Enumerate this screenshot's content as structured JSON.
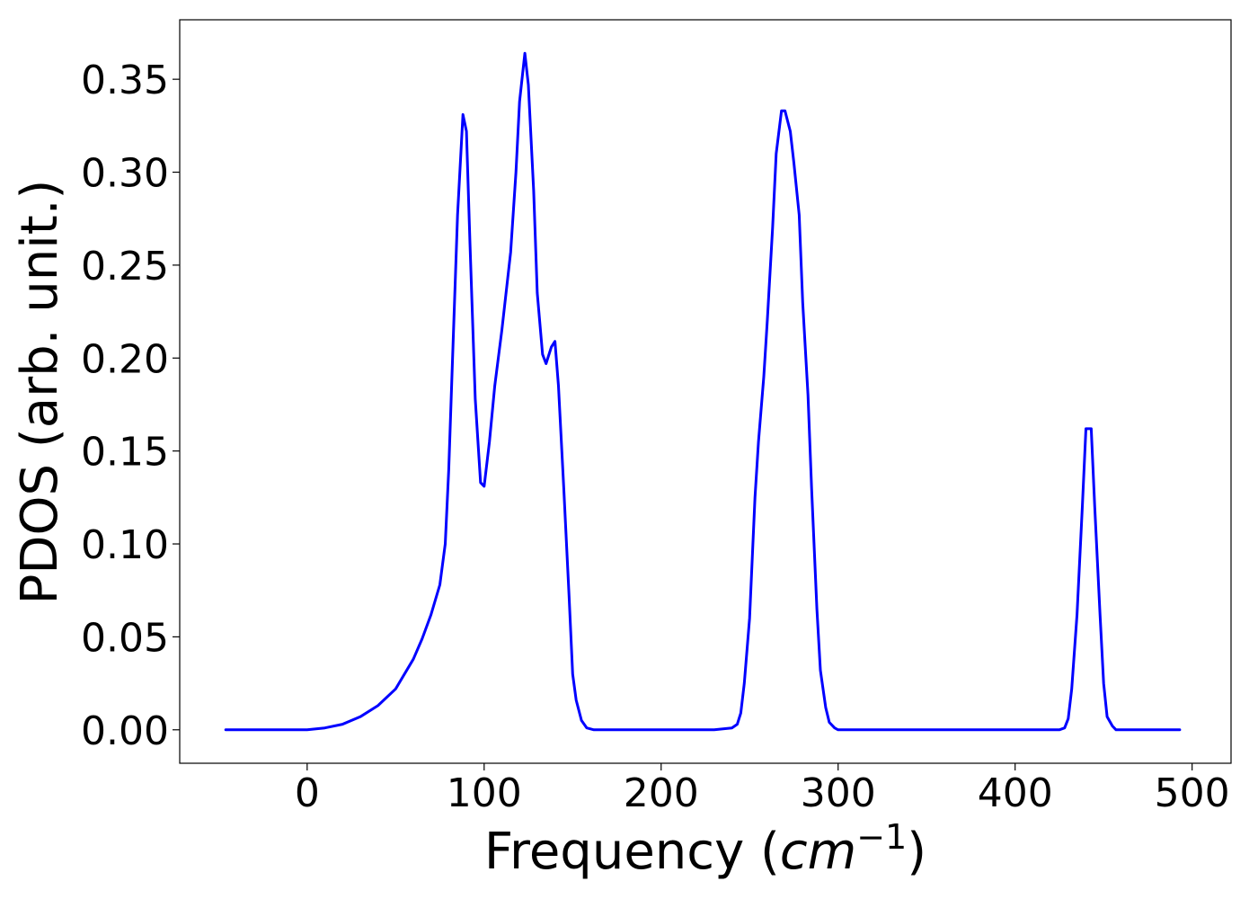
{
  "chart_data": {
    "type": "line",
    "title": "",
    "xlabel": "Frequency",
    "xlabel_unit": "cm",
    "xlabel_exp": "−1",
    "ylabel": "PDOS (arb. unit.)",
    "xlim": [
      -72,
      522
    ],
    "ylim": [
      -0.018,
      0.382
    ],
    "xticks": [
      0,
      100,
      200,
      300,
      400,
      500
    ],
    "yticks": [
      0.0,
      0.05,
      0.1,
      0.15,
      0.2,
      0.25,
      0.3,
      0.35
    ],
    "xtick_labels": [
      "0",
      "100",
      "200",
      "300",
      "400",
      "500"
    ],
    "ytick_labels": [
      "0.00",
      "0.05",
      "0.10",
      "0.15",
      "0.20",
      "0.25",
      "0.30",
      "0.35"
    ],
    "grid": false,
    "series": [
      {
        "color": "#0000ff",
        "x": [
          -46,
          -20,
          0,
          10,
          20,
          30,
          40,
          50,
          60,
          65,
          70,
          75,
          78,
          80,
          82,
          85,
          88,
          90,
          92,
          95,
          98,
          100,
          103,
          106,
          110,
          115,
          118,
          120,
          123,
          125,
          128,
          130,
          133,
          135,
          138,
          140,
          142,
          145,
          148,
          150,
          152,
          155,
          158,
          162,
          170,
          200,
          230,
          240,
          243,
          245,
          247,
          250,
          253,
          255,
          258,
          260,
          263,
          265,
          268,
          270,
          273,
          275,
          278,
          280,
          283,
          285,
          288,
          290,
          293,
          295,
          298,
          300,
          303,
          305,
          310,
          350,
          400,
          425,
          428,
          430,
          432,
          435,
          438,
          440,
          443,
          445,
          448,
          450,
          452,
          455,
          457,
          460,
          465,
          470,
          493
        ],
        "y": [
          0.0,
          0.0,
          0.0,
          0.001,
          0.003,
          0.007,
          0.013,
          0.022,
          0.038,
          0.049,
          0.062,
          0.078,
          0.1,
          0.14,
          0.195,
          0.277,
          0.331,
          0.322,
          0.262,
          0.178,
          0.133,
          0.131,
          0.155,
          0.185,
          0.215,
          0.257,
          0.3,
          0.338,
          0.364,
          0.347,
          0.29,
          0.235,
          0.202,
          0.197,
          0.206,
          0.209,
          0.185,
          0.13,
          0.072,
          0.03,
          0.016,
          0.005,
          0.001,
          0.0,
          0.0,
          0.0,
          0.0,
          0.001,
          0.003,
          0.009,
          0.025,
          0.06,
          0.125,
          0.155,
          0.19,
          0.22,
          0.27,
          0.31,
          0.333,
          0.333,
          0.322,
          0.305,
          0.277,
          0.23,
          0.18,
          0.13,
          0.065,
          0.032,
          0.012,
          0.004,
          0.001,
          0.0,
          0.0,
          0.0,
          0.0,
          0.0,
          0.0,
          0.0,
          0.001,
          0.006,
          0.022,
          0.062,
          0.12,
          0.162,
          0.162,
          0.12,
          0.062,
          0.025,
          0.007,
          0.002,
          0.0,
          0.0,
          0.0,
          0.0,
          0.0
        ]
      }
    ]
  }
}
